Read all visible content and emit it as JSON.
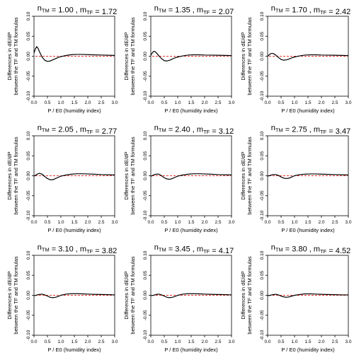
{
  "layout": {
    "rows": 3,
    "cols": 3
  },
  "style": {
    "curve_color": "#000000",
    "zero_line_color": "#e3342f",
    "axis_color": "#000000"
  },
  "chart_data": [
    {
      "type": "line",
      "n_tm": "1.00",
      "m_tf": "1.72",
      "xlabel": "P / E0 (humidity index)",
      "ylabel_line1": "Differences in dE/dP",
      "ylabel_line2": "between the TF and TM formulas",
      "xlim": [
        0,
        3
      ],
      "ylim": [
        -0.1,
        0.1
      ],
      "xticks": [
        "0.0",
        "0.5",
        "1.0",
        "1.5",
        "2.0",
        "2.5",
        "3.0"
      ],
      "yticks": [
        "-0.10",
        "-0.05",
        "0.00",
        "0.05",
        "0.10"
      ],
      "series": [
        {
          "x": [
            0,
            0.05,
            0.1,
            0.15,
            0.2,
            0.3,
            0.4,
            0.5,
            0.6,
            0.7,
            0.8,
            0.9,
            1.0,
            1.2,
            1.4,
            1.6,
            1.8,
            2.0,
            2.2,
            2.5,
            2.8,
            3.0
          ],
          "y": [
            0.008,
            0.018,
            0.024,
            0.02,
            0.012,
            -0.002,
            -0.01,
            -0.013,
            -0.012,
            -0.009,
            -0.006,
            -0.003,
            -0.001,
            0.002,
            0.004,
            0.0045,
            0.0045,
            0.004,
            0.0035,
            0.003,
            0.0025,
            0.002
          ]
        }
      ],
      "reference_line": 0
    },
    {
      "type": "line",
      "n_tm": "1.35",
      "m_tf": "2.07",
      "xlabel": "P / E0 (humidity index)",
      "ylabel_line1": "Differences in dE/dP",
      "ylabel_line2": "between the TF and TM formulas",
      "xlim": [
        0,
        3
      ],
      "ylim": [
        -0.1,
        0.1
      ],
      "xticks": [
        "0.0",
        "0.5",
        "1.0",
        "1.5",
        "2.0",
        "2.5",
        "3.0"
      ],
      "yticks": [
        "-0.10",
        "-0.05",
        "0.00",
        "0.05",
        "0.10"
      ],
      "series": [
        {
          "x": [
            0,
            0.05,
            0.1,
            0.15,
            0.2,
            0.3,
            0.4,
            0.5,
            0.6,
            0.7,
            0.8,
            0.9,
            1.0,
            1.2,
            1.4,
            1.6,
            1.8,
            2.0,
            2.2,
            2.5,
            2.8,
            3.0
          ],
          "y": [
            0.002,
            0.008,
            0.012,
            0.012,
            0.009,
            0.001,
            -0.006,
            -0.011,
            -0.012,
            -0.01,
            -0.007,
            -0.004,
            -0.002,
            0.001,
            0.003,
            0.0035,
            0.0035,
            0.003,
            0.0028,
            0.0025,
            0.002,
            0.0015
          ]
        }
      ],
      "reference_line": 0
    },
    {
      "type": "line",
      "n_tm": "1.70",
      "m_tf": "2.42",
      "xlabel": "P / E0 (humidity index)",
      "ylabel_line1": "Differences in dE/dP",
      "ylabel_line2": "between the TF and TM formulas",
      "xlim": [
        0,
        3
      ],
      "ylim": [
        -0.1,
        0.1
      ],
      "xticks": [
        "0.0",
        "0.5",
        "1.0",
        "1.5",
        "2.0",
        "2.5",
        "3.0"
      ],
      "yticks": [
        "-0.10",
        "-0.05",
        "0.00",
        "0.05",
        "0.10"
      ],
      "series": [
        {
          "x": [
            0,
            0.05,
            0.1,
            0.15,
            0.2,
            0.3,
            0.4,
            0.5,
            0.6,
            0.7,
            0.8,
            0.9,
            1.0,
            1.2,
            1.4,
            1.6,
            1.8,
            2.0,
            2.2,
            2.5,
            2.8,
            3.0
          ],
          "y": [
            0,
            0.003,
            0.006,
            0.007,
            0.007,
            0.003,
            -0.003,
            -0.008,
            -0.01,
            -0.009,
            -0.007,
            -0.004,
            -0.002,
            0.001,
            0.003,
            0.0035,
            0.0035,
            0.003,
            0.0028,
            0.0025,
            0.002,
            0.0015
          ]
        }
      ],
      "reference_line": 0
    },
    {
      "type": "line",
      "n_tm": "2.05",
      "m_tf": "2.77",
      "xlabel": "P / E0 (humidity index)",
      "ylabel_line1": "Differences in dE/dP",
      "ylabel_line2": "between the TF and TM formulas",
      "xlim": [
        0,
        3
      ],
      "ylim": [
        -0.1,
        0.1
      ],
      "xticks": [
        "0.0",
        "0.5",
        "1.0",
        "1.5",
        "2.0",
        "2.5",
        "3.0"
      ],
      "yticks": [
        "-0.10",
        "-0.05",
        "0.00",
        "0.05",
        "0.10"
      ],
      "series": [
        {
          "x": [
            0,
            0.05,
            0.1,
            0.15,
            0.2,
            0.3,
            0.4,
            0.5,
            0.6,
            0.7,
            0.8,
            0.9,
            1.0,
            1.2,
            1.4,
            1.6,
            1.8,
            2.0,
            2.2,
            2.5,
            2.8,
            3.0
          ],
          "y": [
            -0.001,
            0.001,
            0.003,
            0.005,
            0.006,
            0.004,
            -0.002,
            -0.007,
            -0.01,
            -0.01,
            -0.007,
            -0.004,
            -0.001,
            0.002,
            0.004,
            0.005,
            0.005,
            0.0045,
            0.004,
            0.003,
            0.0025,
            0.002
          ]
        }
      ],
      "reference_line": 0
    },
    {
      "type": "line",
      "n_tm": "2.40",
      "m_tf": "3.12",
      "xlabel": "P / E0 (humidity index)",
      "ylabel_line1": "Differences in dE/dP",
      "ylabel_line2": "between the TF and TM formulas",
      "xlim": [
        0,
        3
      ],
      "ylim": [
        -0.1,
        0.1
      ],
      "xticks": [
        "0.0",
        "0.5",
        "1.0",
        "1.5",
        "2.0",
        "2.5",
        "3.0"
      ],
      "yticks": [
        "-0.10",
        "-0.05",
        "0.00",
        "0.05",
        "0.10"
      ],
      "series": [
        {
          "x": [
            0,
            0.05,
            0.1,
            0.15,
            0.2,
            0.3,
            0.4,
            0.5,
            0.6,
            0.7,
            0.8,
            0.9,
            1.0,
            1.2,
            1.4,
            1.6,
            1.8,
            2.0,
            2.2,
            2.5,
            2.8,
            3.0
          ],
          "y": [
            -0.001,
            0.0,
            0.002,
            0.003,
            0.004,
            0.004,
            0.0,
            -0.005,
            -0.008,
            -0.009,
            -0.007,
            -0.004,
            -0.001,
            0.002,
            0.004,
            0.005,
            0.005,
            0.0045,
            0.004,
            0.003,
            0.0025,
            0.002
          ]
        }
      ],
      "reference_line": 0
    },
    {
      "type": "line",
      "n_tm": "2.75",
      "m_tf": "3.47",
      "xlabel": "P / E0 (humidity index)",
      "ylabel_line1": "Differences in dE/dP",
      "ylabel_line2": "between the TF and TM formulas",
      "xlim": [
        0,
        3
      ],
      "ylim": [
        -0.1,
        0.1
      ],
      "xticks": [
        "0.0",
        "0.5",
        "1.0",
        "1.5",
        "2.0",
        "2.5",
        "3.0"
      ],
      "yticks": [
        "-0.10",
        "-0.05",
        "0.00",
        "0.05",
        "0.10"
      ],
      "series": [
        {
          "x": [
            0,
            0.05,
            0.1,
            0.15,
            0.2,
            0.3,
            0.4,
            0.5,
            0.6,
            0.7,
            0.8,
            0.9,
            1.0,
            1.2,
            1.4,
            1.6,
            1.8,
            2.0,
            2.2,
            2.5,
            2.8,
            3.0
          ],
          "y": [
            -0.001,
            0.0,
            0.001,
            0.002,
            0.003,
            0.003,
            0.001,
            -0.003,
            -0.006,
            -0.007,
            -0.006,
            -0.003,
            0.0,
            0.003,
            0.004,
            0.0045,
            0.0045,
            0.004,
            0.0035,
            0.003,
            0.0025,
            0.002
          ]
        }
      ],
      "reference_line": 0
    },
    {
      "type": "line",
      "n_tm": "3.10",
      "m_tf": "3.82",
      "xlabel": "P / E0 (humidity index)",
      "ylabel_line1": "Differences in dE/dP",
      "ylabel_line2": "between the TF and TM formulas",
      "xlim": [
        0,
        3
      ],
      "ylim": [
        -0.1,
        0.1
      ],
      "xticks": [
        "0.0",
        "0.5",
        "1.0",
        "1.5",
        "2.0",
        "2.5",
        "3.0"
      ],
      "yticks": [
        "-0.10",
        "-0.05",
        "0.00",
        "0.05",
        "0.10"
      ],
      "series": [
        {
          "x": [
            0,
            0.05,
            0.1,
            0.15,
            0.2,
            0.3,
            0.4,
            0.5,
            0.6,
            0.7,
            0.8,
            0.9,
            1.0,
            1.2,
            1.4,
            1.6,
            1.8,
            2.0,
            2.2,
            2.5,
            2.8,
            3.0
          ],
          "y": [
            -0.001,
            -0.0005,
            0.0005,
            0.0015,
            0.002,
            0.003,
            0.001,
            -0.002,
            -0.005,
            -0.006,
            -0.005,
            -0.003,
            0.0,
            0.003,
            0.004,
            0.004,
            0.0035,
            0.003,
            0.0025,
            0.002,
            0.0015,
            0.001
          ]
        }
      ],
      "reference_line": 0
    },
    {
      "type": "line",
      "n_tm": "3.45",
      "m_tf": "4.17",
      "xlabel": "P / E0 (humidity index)",
      "ylabel_line1": "Differences in dE/dP",
      "ylabel_line2": "between the TF and TM formulas",
      "xlim": [
        0,
        3
      ],
      "ylim": [
        -0.1,
        0.1
      ],
      "xticks": [
        "0.0",
        "0.5",
        "1.0",
        "1.5",
        "2.0",
        "2.5",
        "3.0"
      ],
      "yticks": [
        "-0.10",
        "-0.05",
        "0.00",
        "0.05",
        "0.10"
      ],
      "series": [
        {
          "x": [
            0,
            0.05,
            0.1,
            0.15,
            0.2,
            0.3,
            0.4,
            0.5,
            0.6,
            0.7,
            0.8,
            0.9,
            1.0,
            1.2,
            1.4,
            1.6,
            1.8,
            2.0,
            2.2,
            2.5,
            2.8,
            3.0
          ],
          "y": [
            -0.001,
            -0.0005,
            0.0,
            0.001,
            0.002,
            0.003,
            0.001,
            -0.002,
            -0.005,
            -0.006,
            -0.005,
            -0.003,
            0.0,
            0.003,
            0.004,
            0.004,
            0.0035,
            0.003,
            0.0025,
            0.002,
            0.0015,
            0.001
          ]
        }
      ],
      "reference_line": 0
    },
    {
      "type": "line",
      "n_tm": "3.80",
      "m_tf": "4.52",
      "xlabel": "P / E0 (humidity index)",
      "ylabel_line1": "Differences in dE/dP",
      "ylabel_line2": "between the TF and TM formulas",
      "xlim": [
        0,
        3
      ],
      "ylim": [
        -0.1,
        0.1
      ],
      "xticks": [
        "0.0",
        "0.5",
        "1.0",
        "1.5",
        "2.0",
        "2.5",
        "3.0"
      ],
      "yticks": [
        "-0.10",
        "-0.05",
        "0.00",
        "0.05",
        "0.10"
      ],
      "series": [
        {
          "x": [
            0,
            0.05,
            0.1,
            0.15,
            0.2,
            0.3,
            0.4,
            0.5,
            0.6,
            0.7,
            0.8,
            0.9,
            1.0,
            1.2,
            1.4,
            1.6,
            1.8,
            2.0,
            2.2,
            2.5,
            2.8,
            3.0
          ],
          "y": [
            -0.001,
            -0.0005,
            0.0,
            0.001,
            0.0015,
            0.0025,
            0.001,
            -0.002,
            -0.004,
            -0.005,
            -0.004,
            -0.002,
            0.0,
            0.002,
            0.0035,
            0.0035,
            0.003,
            0.0025,
            0.002,
            0.0015,
            0.001,
            0.001
          ]
        }
      ],
      "reference_line": 0
    }
  ]
}
